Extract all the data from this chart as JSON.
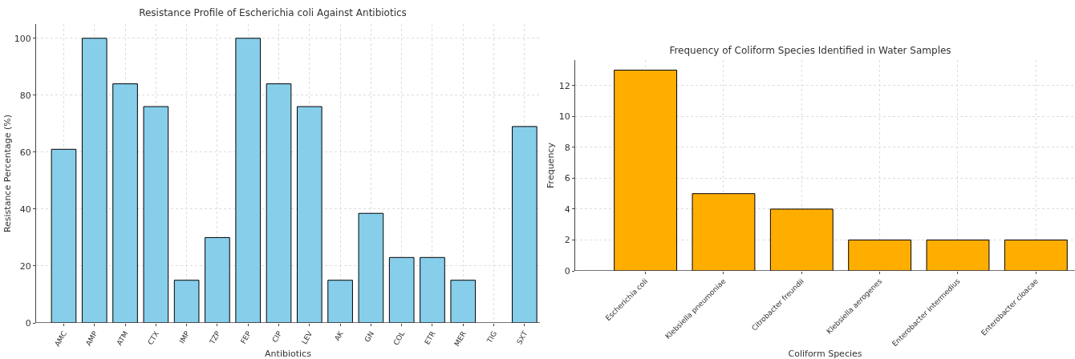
{
  "chart_data": [
    {
      "type": "bar",
      "title": "Resistance Profile of Escherichia coli Against Antibiotics",
      "xlabel": "Antibiotics",
      "ylabel": "Resistance Percentage (%)",
      "categories": [
        "AMC",
        "AMP",
        "ATM",
        "CTX",
        "IMP",
        "TZP",
        "FEP",
        "CIP",
        "LEV",
        "AK",
        "GN",
        "COL",
        "ETR",
        "MER",
        "TIG",
        "SXT"
      ],
      "values": [
        61,
        100,
        84,
        76,
        15,
        30,
        100,
        84,
        76,
        15,
        38.5,
        23,
        23,
        15,
        0,
        69
      ],
      "color": "#87ceeb",
      "ylim": [
        0,
        105
      ],
      "yticks": [
        0,
        20,
        40,
        60,
        80,
        100
      ],
      "grid": true
    },
    {
      "type": "bar",
      "title": "Frequency of Coliform Species Identified in Water Samples",
      "xlabel": "Coliform Species",
      "ylabel": "Frequency",
      "categories": [
        "Escherichia coli",
        "Klebsiella pneumoniae",
        "Citrobacter freundii",
        "Klebsiella aerogenes",
        "Enterobacter intermedius",
        "Enterobacter cloacae"
      ],
      "values": [
        13,
        5,
        4,
        2,
        2,
        2
      ],
      "color": "#ffae00",
      "ylim": [
        0,
        13.65
      ],
      "yticks": [
        0,
        2,
        4,
        6,
        8,
        10,
        12
      ],
      "grid": true
    }
  ]
}
